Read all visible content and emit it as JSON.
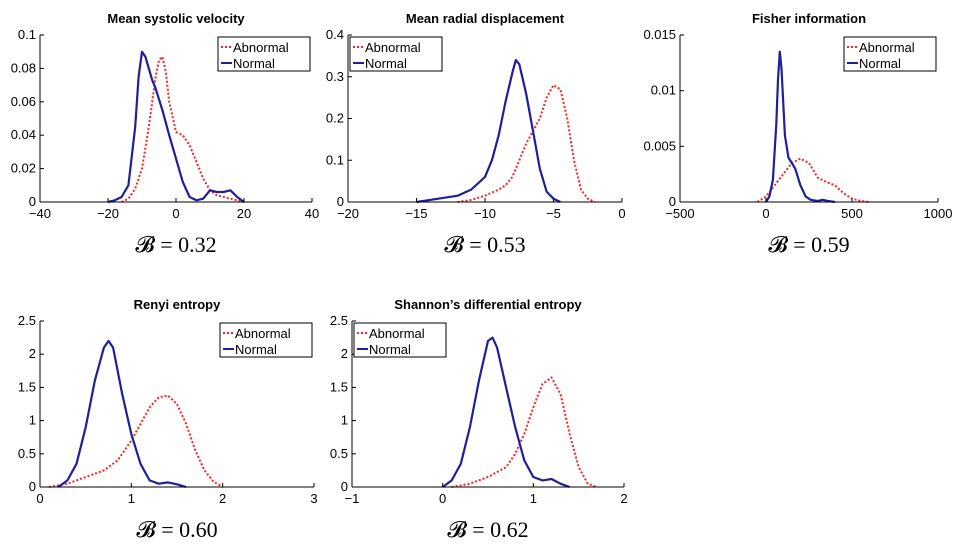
{
  "chart_data": [
    {
      "type": "line",
      "title": "Mean systolic velocity",
      "xlim": [
        -40,
        40
      ],
      "ylim": [
        0,
        0.1
      ],
      "xticks": [
        "−40",
        "−20",
        "0",
        "20",
        "40"
      ],
      "yticks": [
        "0",
        "0.02",
        "0.04",
        "0.06",
        "0.08",
        "0.1"
      ],
      "bhattacharyya_text": "𝓑 = 0.32",
      "legend_position": "top-right",
      "series": [
        {
          "name": "Abnormal",
          "color": "#ff2020",
          "style": "dotted",
          "x": [
            -16,
            -14,
            -12,
            -10,
            -8,
            -6,
            -5,
            -4,
            -3,
            -2,
            0,
            2,
            4,
            6,
            8,
            10,
            12,
            14,
            16,
            18,
            20
          ],
          "y": [
            0,
            0.002,
            0.008,
            0.02,
            0.045,
            0.075,
            0.085,
            0.087,
            0.078,
            0.06,
            0.042,
            0.04,
            0.034,
            0.024,
            0.014,
            0.007,
            0.004,
            0.003,
            0.002,
            0.001,
            0
          ]
        },
        {
          "name": "Normal",
          "color": "#1f1f99",
          "style": "solid",
          "x": [
            -20,
            -18,
            -16,
            -14,
            -12,
            -11,
            -10,
            -9,
            -8,
            -7,
            -6,
            -4,
            -2,
            0,
            2,
            4,
            6,
            8,
            10,
            12,
            14,
            16,
            18,
            20
          ],
          "y": [
            0,
            0.001,
            0.003,
            0.01,
            0.045,
            0.075,
            0.09,
            0.087,
            0.08,
            0.073,
            0.068,
            0.055,
            0.04,
            0.026,
            0.012,
            0.003,
            0.001,
            0.002,
            0.007,
            0.006,
            0.006,
            0.007,
            0.003,
            0
          ]
        }
      ]
    },
    {
      "type": "line",
      "title": "Mean radial displacement",
      "xlim": [
        -20,
        0
      ],
      "ylim": [
        0,
        0.4
      ],
      "xticks": [
        "−20",
        "−15",
        "−10",
        "−5",
        "0"
      ],
      "yticks": [
        "0",
        "0.1",
        "0.2",
        "0.3",
        "0.4"
      ],
      "bhattacharyya_text": "𝓑 = 0.53",
      "legend_position": "top-left",
      "series": [
        {
          "name": "Abnormal",
          "color": "#ff2020",
          "style": "dotted",
          "x": [
            -12,
            -11,
            -10,
            -9,
            -8.5,
            -8,
            -7.5,
            -7,
            -6.5,
            -6,
            -5.5,
            -5,
            -4.5,
            -4,
            -3.5,
            -3,
            -2.5,
            -2
          ],
          "y": [
            0,
            0.005,
            0.015,
            0.03,
            0.04,
            0.06,
            0.1,
            0.14,
            0.17,
            0.2,
            0.25,
            0.28,
            0.27,
            0.2,
            0.1,
            0.03,
            0.008,
            0
          ]
        },
        {
          "name": "Normal",
          "color": "#1f1f99",
          "style": "solid",
          "x": [
            -15,
            -14,
            -13,
            -12,
            -11,
            -10,
            -9.5,
            -9,
            -8.5,
            -8,
            -7.75,
            -7.5,
            -7,
            -6.5,
            -6,
            -5.5,
            -5,
            -4.5
          ],
          "y": [
            0,
            0.005,
            0.01,
            0.015,
            0.03,
            0.06,
            0.1,
            0.16,
            0.24,
            0.31,
            0.34,
            0.33,
            0.26,
            0.17,
            0.08,
            0.025,
            0.008,
            0
          ]
        }
      ]
    },
    {
      "type": "line",
      "title": "Fisher information",
      "xlim": [
        -500,
        1000
      ],
      "ylim": [
        0,
        0.015
      ],
      "xticks": [
        "−500",
        "0",
        "500",
        "1000"
      ],
      "yticks": [
        "0",
        "0.005",
        "0.01",
        "0.015"
      ],
      "bhattacharyya_text": "𝓑 = 0.59",
      "legend_position": "top-right",
      "series": [
        {
          "name": "Abnormal",
          "color": "#ff2020",
          "style": "dotted",
          "x": [
            -50,
            0,
            50,
            100,
            150,
            200,
            250,
            300,
            350,
            400,
            450,
            500,
            550,
            600
          ],
          "y": [
            0,
            0.0005,
            0.0015,
            0.0025,
            0.0035,
            0.0039,
            0.0035,
            0.0022,
            0.0018,
            0.0015,
            0.0008,
            0.0003,
            0.0001,
            0
          ]
        },
        {
          "name": "Normal",
          "color": "#1f1f99",
          "style": "solid",
          "x": [
            0,
            20,
            40,
            60,
            70,
            80,
            90,
            100,
            110,
            130,
            150,
            170,
            200,
            230,
            260,
            300,
            330,
            360,
            400
          ],
          "y": [
            0,
            0.0005,
            0.002,
            0.007,
            0.011,
            0.0135,
            0.012,
            0.009,
            0.006,
            0.004,
            0.0035,
            0.003,
            0.0015,
            0.0005,
            0.0002,
            0.0001,
            0.0002,
            0.0001,
            0
          ]
        }
      ]
    },
    {
      "type": "line",
      "title": "Renyi entropy",
      "xlim": [
        0,
        3
      ],
      "ylim": [
        0,
        2.5
      ],
      "xticks": [
        "0",
        "1",
        "2",
        "3"
      ],
      "yticks": [
        "0",
        "0.5",
        "1",
        "1.5",
        "2",
        "2.5"
      ],
      "bhattacharyya_text": "𝓑 = 0.60",
      "legend_position": "top-right",
      "series": [
        {
          "name": "Abnormal",
          "color": "#ff2020",
          "style": "dotted",
          "x": [
            0.1,
            0.3,
            0.5,
            0.7,
            0.85,
            1.0,
            1.1,
            1.2,
            1.3,
            1.4,
            1.5,
            1.6,
            1.7,
            1.8,
            1.9,
            2.0
          ],
          "y": [
            0,
            0.05,
            0.15,
            0.25,
            0.4,
            0.7,
            0.95,
            1.2,
            1.35,
            1.38,
            1.25,
            0.95,
            0.55,
            0.25,
            0.08,
            0
          ]
        },
        {
          "name": "Normal",
          "color": "#1f1f99",
          "style": "solid",
          "x": [
            0.2,
            0.3,
            0.4,
            0.5,
            0.6,
            0.7,
            0.75,
            0.8,
            0.9,
            1.0,
            1.1,
            1.2,
            1.3,
            1.4,
            1.5,
            1.6
          ],
          "y": [
            0,
            0.1,
            0.35,
            0.9,
            1.6,
            2.1,
            2.2,
            2.1,
            1.4,
            0.8,
            0.35,
            0.1,
            0.05,
            0.07,
            0.04,
            0
          ]
        }
      ]
    },
    {
      "type": "line",
      "title": "Shannon’s differential entropy",
      "xlim": [
        -1,
        2
      ],
      "ylim": [
        0,
        2.5
      ],
      "xticks": [
        "−1",
        "0",
        "1",
        "2"
      ],
      "yticks": [
        "0",
        "0.5",
        "1",
        "1.5",
        "2",
        "2.5"
      ],
      "bhattacharyya_text": "𝓑 = 0.62",
      "legend_position": "top-left",
      "series": [
        {
          "name": "Abnormal",
          "color": "#ff2020",
          "style": "dotted",
          "x": [
            0.1,
            0.3,
            0.5,
            0.7,
            0.8,
            0.9,
            1.0,
            1.1,
            1.2,
            1.3,
            1.4,
            1.5,
            1.6,
            1.7
          ],
          "y": [
            0,
            0.05,
            0.15,
            0.3,
            0.5,
            0.8,
            1.2,
            1.55,
            1.65,
            1.4,
            0.8,
            0.3,
            0.05,
            0
          ]
        },
        {
          "name": "Normal",
          "color": "#1f1f99",
          "style": "solid",
          "x": [
            0.0,
            0.1,
            0.2,
            0.3,
            0.4,
            0.5,
            0.55,
            0.6,
            0.7,
            0.8,
            0.9,
            1.0,
            1.1,
            1.2,
            1.3,
            1.4
          ],
          "y": [
            0,
            0.1,
            0.35,
            0.9,
            1.6,
            2.2,
            2.25,
            2.1,
            1.5,
            0.9,
            0.4,
            0.15,
            0.1,
            0.12,
            0.05,
            0
          ]
        }
      ]
    }
  ]
}
